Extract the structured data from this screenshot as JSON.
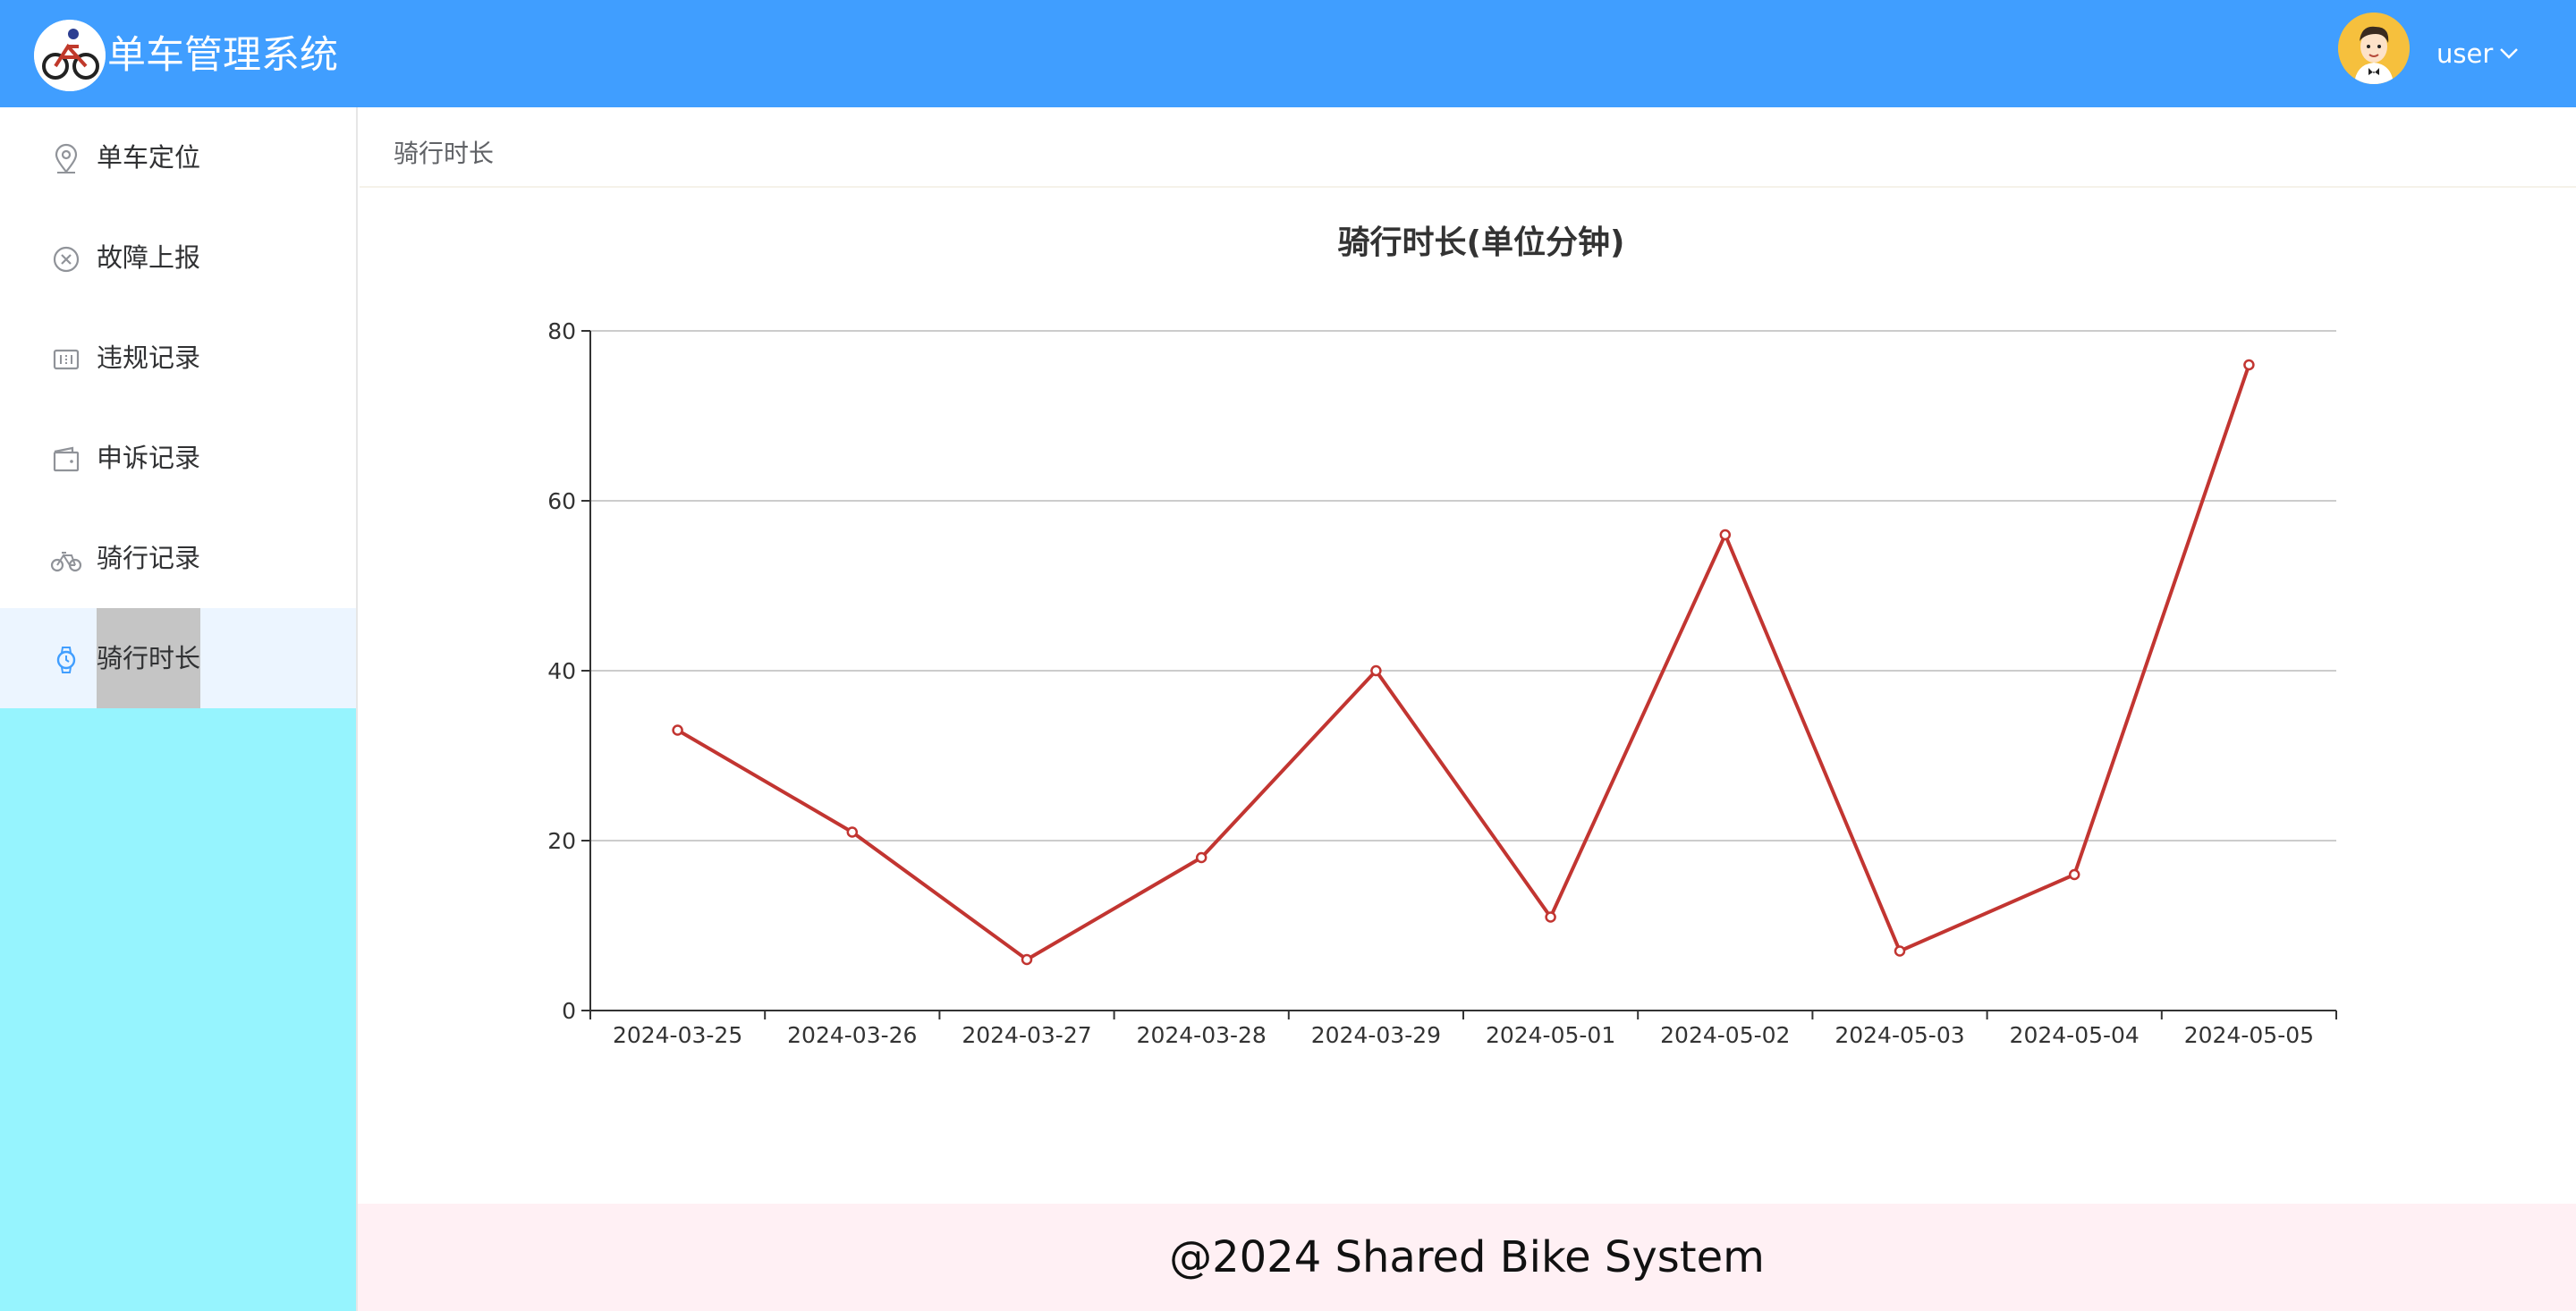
{
  "header": {
    "title": "单车管理系统",
    "username": "user",
    "brand_color": "#409eff"
  },
  "sidebar": {
    "items": [
      {
        "label": "单车定位",
        "icon": "location-pin-icon"
      },
      {
        "label": "故障上报",
        "icon": "circle-close-icon"
      },
      {
        "label": "违规记录",
        "icon": "ticket-icon"
      },
      {
        "label": "申诉记录",
        "icon": "wallet-icon"
      },
      {
        "label": "骑行记录",
        "icon": "bicycle-icon"
      },
      {
        "label": "骑行时长",
        "icon": "watch-icon",
        "active": true
      }
    ],
    "background": "#96f4fe"
  },
  "breadcrumb": "骑行时长",
  "chart_data": {
    "type": "line",
    "title": "骑行时长(单位分钟)",
    "categories": [
      "2024-03-25",
      "2024-03-26",
      "2024-03-27",
      "2024-03-28",
      "2024-03-29",
      "2024-05-01",
      "2024-05-02",
      "2024-05-03",
      "2024-05-04",
      "2024-05-05"
    ],
    "series": [
      {
        "values": [
          33,
          21,
          6,
          18,
          40,
          11,
          56,
          7,
          16,
          76
        ],
        "color": "#c23531"
      }
    ],
    "ylim": [
      0,
      80
    ],
    "yticks": [
      "0",
      "20",
      "40",
      "60",
      "80"
    ],
    "grid": true
  },
  "footer": "@2024 Shared Bike System"
}
